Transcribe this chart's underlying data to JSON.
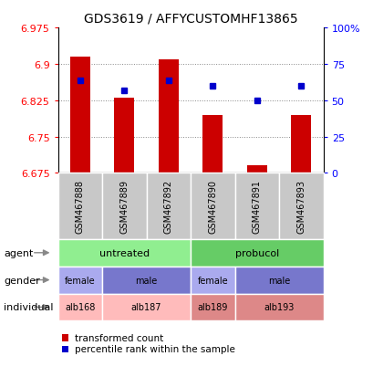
{
  "title": "GDS3619 / AFFYCUSTOMHF13865",
  "samples": [
    "GSM467888",
    "GSM467889",
    "GSM467892",
    "GSM467890",
    "GSM467891",
    "GSM467893"
  ],
  "red_values": [
    6.915,
    6.83,
    6.91,
    6.795,
    6.69,
    6.795
  ],
  "blue_values": [
    6.865,
    6.845,
    6.865,
    6.855,
    6.825,
    6.855
  ],
  "ymin": 6.675,
  "ymax": 6.975,
  "yticks_left": [
    6.675,
    6.75,
    6.825,
    6.9,
    6.975
  ],
  "yticks_right_labels": [
    "0",
    "25",
    "50",
    "75",
    "100%"
  ],
  "yticks_right": [
    0,
    25,
    50,
    75,
    100
  ],
  "bar_color": "#CC0000",
  "dot_color": "#0000CC",
  "grid_color": "#888888",
  "bg_sample": "#C8C8C8",
  "agent_colors": [
    "#90EE90",
    "#66CC66"
  ],
  "gender_color_female": "#AAAAEE",
  "gender_color_male": "#7777CC",
  "individual_color_light": "#FFBBBB",
  "individual_color_dark": "#DD8888"
}
